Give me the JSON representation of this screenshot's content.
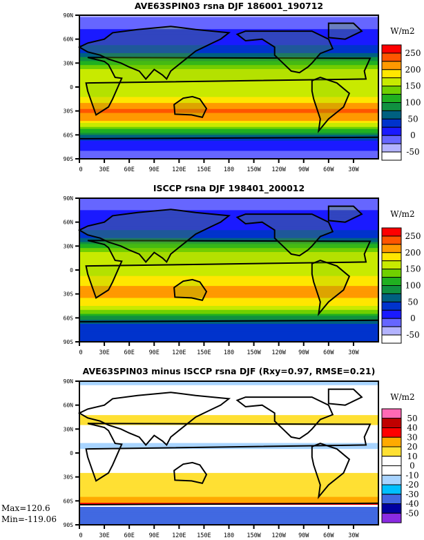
{
  "chart_data": [
    {
      "type": "heatmap",
      "title": "AVE63SPIN03 rsna DJF 186001_190712",
      "units": "W/m2",
      "y_ticks": [
        "90N",
        "60N",
        "30N",
        "0",
        "30S",
        "60S",
        "90S"
      ],
      "x_ticks": [
        "0",
        "30E",
        "60E",
        "90E",
        "120E",
        "150E",
        "180",
        "150W",
        "120W",
        "90W",
        "60W",
        "30W"
      ],
      "colorbar_labels": [
        "250",
        "200",
        "150",
        "100",
        "50",
        "0",
        "-50"
      ],
      "levels": [
        -50,
        -25,
        0,
        25,
        50,
        75,
        100,
        125,
        150,
        175,
        200,
        225,
        250
      ],
      "colors": [
        "#ffffff",
        "#b3b3ff",
        "#6666ff",
        "#1a1aff",
        "#0033cc",
        "#006080",
        "#109040",
        "#20b020",
        "#70d000",
        "#c8ea00",
        "#ffe600",
        "#ff9900",
        "#ff5500",
        "#ff0000"
      ],
      "zonal_mean_approx": {
        "lat": [
          90,
          80,
          70,
          60,
          50,
          40,
          30,
          20,
          10,
          0,
          -10,
          -20,
          -30,
          -40,
          -50,
          -60,
          -65,
          -70,
          -80,
          -90
        ],
        "value": [
          -30,
          -10,
          5,
          15,
          30,
          60,
          110,
          160,
          170,
          150,
          170,
          200,
          230,
          210,
          150,
          80,
          50,
          10,
          0,
          -10
        ]
      }
    },
    {
      "type": "heatmap",
      "title": "ISCCP rsna DJF 198401_200012",
      "units": "W/m2",
      "y_ticks": [
        "90N",
        "60N",
        "30N",
        "0",
        "30S",
        "60S",
        "90S"
      ],
      "x_ticks": [
        "0",
        "30E",
        "60E",
        "90E",
        "120E",
        "150E",
        "180",
        "150W",
        "120W",
        "90W",
        "60W",
        "30W"
      ],
      "colorbar_labels": [
        "250",
        "200",
        "150",
        "100",
        "50",
        "0",
        "-50"
      ],
      "levels": [
        -50,
        -25,
        0,
        25,
        50,
        75,
        100,
        125,
        150,
        175,
        200,
        225,
        250
      ],
      "colors": [
        "#ffffff",
        "#b3b3ff",
        "#6666ff",
        "#1a1aff",
        "#0033cc",
        "#006080",
        "#109040",
        "#20b020",
        "#70d000",
        "#c8ea00",
        "#ffe600",
        "#ff9900",
        "#ff5500",
        "#ff0000"
      ],
      "zonal_mean_approx": {
        "lat": [
          90,
          80,
          70,
          60,
          50,
          40,
          30,
          20,
          10,
          0,
          -10,
          -20,
          -30,
          -40,
          -50,
          -60,
          -65,
          -70,
          -80,
          -90
        ],
        "value": [
          -10,
          -5,
          5,
          10,
          25,
          50,
          110,
          160,
          175,
          160,
          180,
          200,
          215,
          190,
          150,
          90,
          60,
          40,
          40,
          40
        ]
      }
    },
    {
      "type": "heatmap",
      "title": "AVE63SPIN03 minus ISCCP rsna DJF (Rxy=0.97, RMSE=0.21)",
      "units": "W/m2",
      "y_ticks": [
        "90N",
        "60N",
        "30N",
        "0",
        "30S",
        "60S",
        "90S"
      ],
      "x_ticks": [
        "0",
        "30E",
        "60E",
        "90E",
        "120E",
        "150E",
        "180",
        "150W",
        "120W",
        "90W",
        "60W",
        "30W"
      ],
      "colorbar_labels": [
        "50",
        "40",
        "30",
        "20",
        "10",
        "0",
        "-10",
        "-20",
        "-30",
        "-40",
        "-50"
      ],
      "levels": [
        -50,
        -40,
        -30,
        -20,
        -10,
        0,
        10,
        20,
        30,
        40,
        50
      ],
      "colors": [
        "#8a2be2",
        "#0000a0",
        "#4169e1",
        "#00bfff",
        "#a8d4ff",
        "#ffffff",
        "#ffffff",
        "#ffe033",
        "#ffaa00",
        "#ff0000",
        "#c00000",
        "#ff69b4"
      ],
      "zonal_mean_approx": {
        "lat": [
          90,
          80,
          70,
          60,
          50,
          40,
          30,
          20,
          10,
          0,
          -10,
          -20,
          -30,
          -40,
          -50,
          -60,
          -65,
          -68,
          -72,
          -80,
          -90
        ],
        "value": [
          -15,
          -5,
          5,
          2,
          8,
          15,
          3,
          -5,
          -12,
          -8,
          -5,
          5,
          15,
          18,
          12,
          25,
          35,
          -35,
          -35,
          -35,
          -35
        ]
      },
      "stats": {
        "max": "Max=120.6",
        "min": "Min=-119.06"
      }
    }
  ]
}
